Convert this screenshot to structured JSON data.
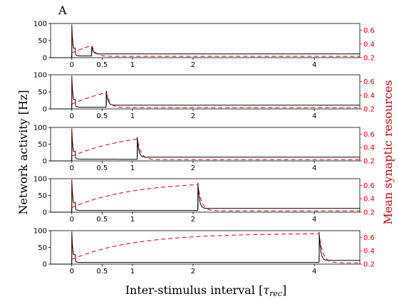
{
  "panel_letter": "A",
  "chart_data": {
    "type": "line",
    "panels": 5,
    "xlabel_main": "Inter-stimulus interval [",
    "xlabel_sym": "τ",
    "xlabel_sub": "rec",
    "xlabel_close": "]",
    "ylabel_left": "Network activity [Hz]",
    "ylabel_right": "Mean synaptic resources",
    "xlim": [
      -0.35,
      4.75
    ],
    "x_ticks": [
      0,
      0.5,
      1,
      2,
      4
    ],
    "x_tick_labels": [
      "0",
      "0.5",
      "1",
      "2",
      "4"
    ],
    "ylim_left": [
      0,
      100
    ],
    "y_ticks_left": [
      0,
      50,
      100
    ],
    "y_tick_labels_left": [
      "0",
      "50",
      "100"
    ],
    "ylim_right": [
      0.2,
      0.7
    ],
    "y_ticks_right": [
      0.2,
      0.4,
      0.6
    ],
    "y_tick_labels_right": [
      "0.2",
      "0.4",
      "0.6"
    ],
    "series": [
      {
        "role": "Network activity",
        "axis": "left",
        "color": "#000000",
        "style": "solid"
      },
      {
        "role": "Mean synaptic resources",
        "axis": "right",
        "color": "#d40000",
        "style": "dashed"
      }
    ],
    "stimulus_times": [
      [
        0,
        0.33
      ],
      [
        0,
        0.57
      ],
      [
        0,
        1.08
      ],
      [
        0,
        2.08
      ],
      [
        0,
        4.08
      ]
    ],
    "activity_model": {
      "peak_hz": 97,
      "first_decay": 0.02,
      "baseline_hz": 5,
      "late_baseline_hz": 11,
      "second_peak_hz": [
        32,
        52,
        72,
        88,
        96
      ]
    },
    "resources_model": {
      "start": 0.27,
      "recovery_tau": 1.0,
      "asymptote": 0.66,
      "floor": 0.22
    }
  }
}
